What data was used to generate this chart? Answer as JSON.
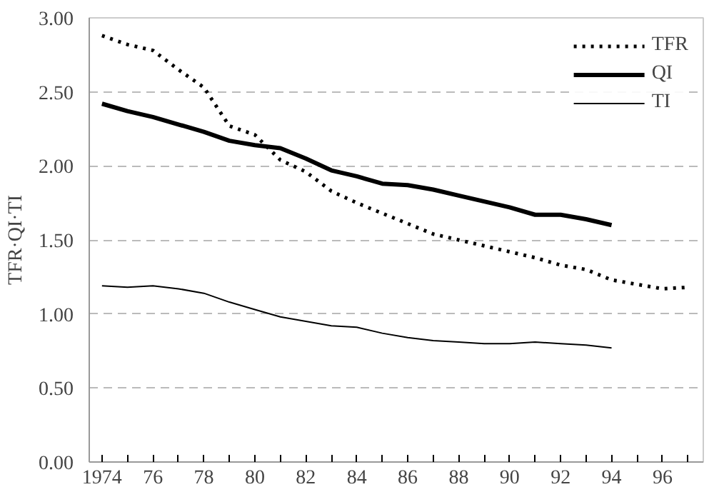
{
  "chart_data": {
    "type": "line",
    "ylabel": "TFR·QI·TI",
    "x": [
      1974,
      1975,
      1976,
      1977,
      1978,
      1979,
      1980,
      1981,
      1982,
      1983,
      1984,
      1985,
      1986,
      1987,
      1988,
      1989,
      1990,
      1991,
      1992,
      1993,
      1994,
      1995,
      1996,
      1997
    ],
    "series": [
      {
        "name": "TFR",
        "color": "#000000",
        "line_style": "dotted",
        "values": [
          2.88,
          2.82,
          2.78,
          2.65,
          2.53,
          2.27,
          2.21,
          2.04,
          1.96,
          1.83,
          1.75,
          1.68,
          1.61,
          1.54,
          1.5,
          1.46,
          1.42,
          1.38,
          1.33,
          1.3,
          1.23,
          1.2,
          1.17,
          1.18
        ]
      },
      {
        "name": "QI",
        "color": "#000000",
        "line_style": "solid",
        "values": [
          2.42,
          2.37,
          2.33,
          2.28,
          2.23,
          2.17,
          2.14,
          2.12,
          2.05,
          1.97,
          1.93,
          1.88,
          1.87,
          1.84,
          1.8,
          1.76,
          1.72,
          1.67,
          1.67,
          1.64,
          1.6,
          null,
          null,
          null
        ]
      },
      {
        "name": "TI",
        "color": "#000000",
        "line_style": "solid",
        "values": [
          1.19,
          1.18,
          1.19,
          1.17,
          1.14,
          1.08,
          1.03,
          0.98,
          0.95,
          0.92,
          0.91,
          0.87,
          0.84,
          0.82,
          0.81,
          0.8,
          0.8,
          0.81,
          0.8,
          0.79,
          0.77,
          null,
          null,
          null
        ]
      }
    ],
    "xlim": [
      1973.5,
      1997.6
    ],
    "xticks": [
      {
        "value": 1974,
        "label": "1974"
      },
      {
        "value": 1976,
        "label": "76"
      },
      {
        "value": 1978,
        "label": "78"
      },
      {
        "value": 1980,
        "label": "80"
      },
      {
        "value": 1982,
        "label": "82"
      },
      {
        "value": 1984,
        "label": "84"
      },
      {
        "value": 1986,
        "label": "86"
      },
      {
        "value": 1988,
        "label": "88"
      },
      {
        "value": 1990,
        "label": "90"
      },
      {
        "value": 1992,
        "label": "92"
      },
      {
        "value": 1994,
        "label": "94"
      },
      {
        "value": 1996,
        "label": "96"
      }
    ],
    "ylim": [
      0,
      3
    ],
    "yticks": [
      {
        "value": 0,
        "label": "0.00"
      },
      {
        "value": 0.5,
        "label": "0.50"
      },
      {
        "value": 1,
        "label": "1.00"
      },
      {
        "value": 1.5,
        "label": "1.50"
      },
      {
        "value": 2,
        "label": "2.00"
      },
      {
        "value": 2.5,
        "label": "2.50"
      },
      {
        "value": 3,
        "label": "3.00"
      }
    ],
    "grid": "y",
    "legend": "top right"
  }
}
